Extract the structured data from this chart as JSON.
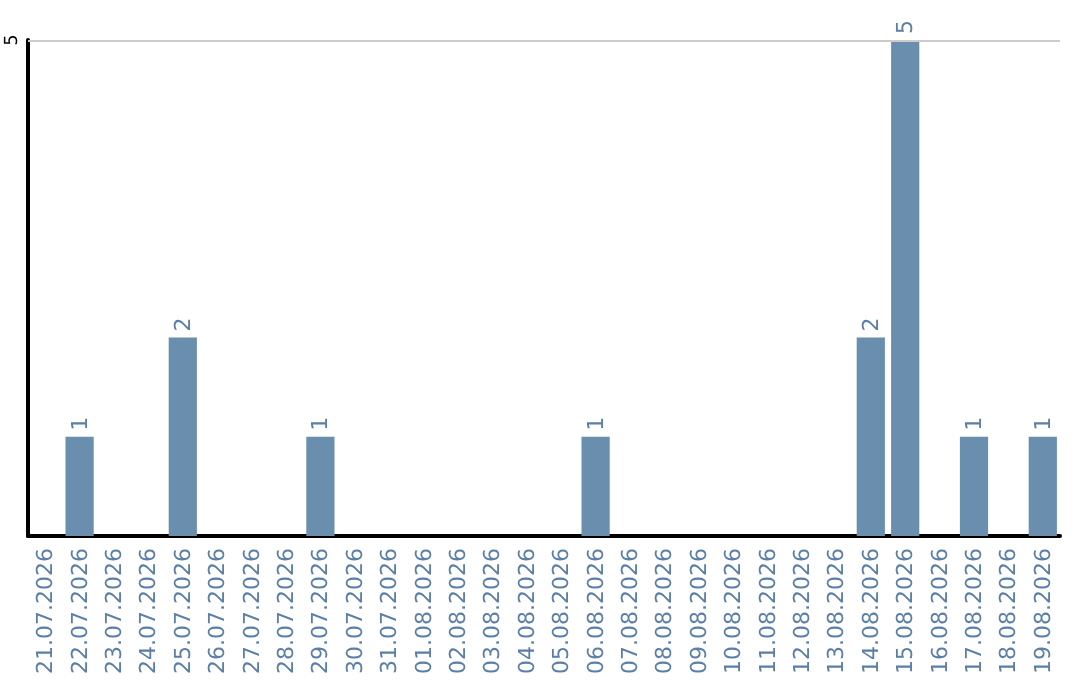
{
  "chart_data": {
    "type": "bar",
    "categories": [
      "21.07.2026",
      "22.07.2026",
      "23.07.2026",
      "24.07.2026",
      "25.07.2026",
      "26.07.2026",
      "27.07.2026",
      "28.07.2026",
      "29.07.2026",
      "30.07.2026",
      "31.07.2026",
      "01.08.2026",
      "02.08.2026",
      "03.08.2026",
      "04.08.2026",
      "05.08.2026",
      "06.08.2026",
      "07.08.2026",
      "08.08.2026",
      "09.08.2026",
      "10.08.2026",
      "11.08.2026",
      "12.08.2026",
      "13.08.2026",
      "14.08.2026",
      "15.08.2026",
      "16.08.2026",
      "17.08.2026",
      "18.08.2026",
      "19.08.2026"
    ],
    "values": [
      0,
      1,
      0,
      0,
      2,
      0,
      0,
      0,
      1,
      0,
      0,
      0,
      0,
      0,
      0,
      0,
      1,
      0,
      0,
      0,
      0,
      0,
      0,
      0,
      2,
      5,
      0,
      1,
      0,
      1
    ],
    "value_labels": [
      null,
      "1",
      null,
      null,
      "2",
      null,
      null,
      null,
      "1",
      null,
      null,
      null,
      null,
      null,
      null,
      null,
      "1",
      null,
      null,
      null,
      null,
      null,
      null,
      null,
      "2",
      "5",
      null,
      "1",
      null,
      "1"
    ],
    "color": "#6a8eae",
    "ylim": [
      0,
      5
    ],
    "yticks": [
      5
    ],
    "ref_lines": [
      {
        "axis": "y",
        "value": 5,
        "color": "#cccccc"
      }
    ]
  }
}
